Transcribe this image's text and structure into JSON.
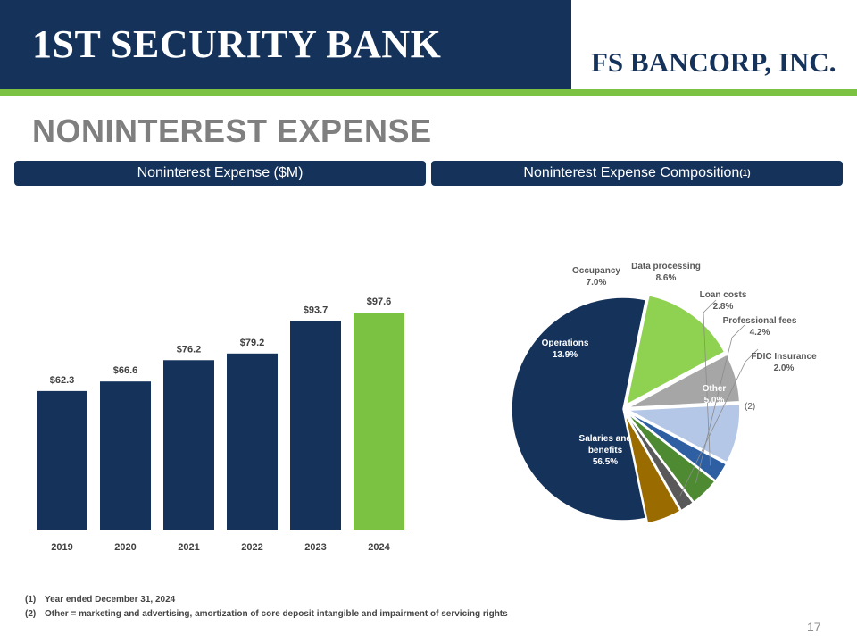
{
  "header": {
    "left_logo": "1ST SECURITY BANK",
    "right_logo": "FS BANCORP, INC."
  },
  "title": "NONINTEREST EXPENSE",
  "sections": {
    "left": "Noninterest Expense ($M)",
    "right": "Noninterest Expense Composition",
    "right_superscript": "(1)"
  },
  "colors": {
    "navy": "#15325b",
    "green": "#7cc242",
    "title_gray": "#7f7f7f"
  },
  "chart_data": [
    {
      "type": "bar",
      "title": "",
      "categories": [
        "2019",
        "2020",
        "2021",
        "2022",
        "2023",
        "2024"
      ],
      "values": [
        62.3,
        66.6,
        76.2,
        79.2,
        93.7,
        97.6
      ],
      "labels": [
        "$62.3",
        "$66.6",
        "$76.2",
        "$79.2",
        "$93.7",
        "$97.6"
      ],
      "colors": [
        "#15325b",
        "#15325b",
        "#15325b",
        "#15325b",
        "#15325b",
        "#7cc242"
      ],
      "ylim": [
        0,
        97.6
      ],
      "grid": false
    },
    {
      "type": "pie",
      "title": "",
      "slices": [
        {
          "name": "Salaries and benefits",
          "value": 56.5,
          "label": "56.5%",
          "color": "#15325b"
        },
        {
          "name": "Operations",
          "value": 13.9,
          "label": "13.9%",
          "color": "#8fd150"
        },
        {
          "name": "Occupancy",
          "value": 7.0,
          "label": "7.0%",
          "color": "#a6a6a6"
        },
        {
          "name": "Data processing",
          "value": 8.6,
          "label": "8.6%",
          "color": "#b4c7e7"
        },
        {
          "name": "Loan costs",
          "value": 2.8,
          "label": "2.8%",
          "color": "#2e5fa3"
        },
        {
          "name": "Professional fees",
          "value": 4.2,
          "label": "4.2%",
          "color": "#4e8a32"
        },
        {
          "name": "FDIC Insurance",
          "value": 2.0,
          "label": "2.0%",
          "color": "#595959"
        },
        {
          "name": "Other",
          "value": 5.0,
          "label": "5.0%",
          "color": "#9a6c00"
        }
      ],
      "other_note": "(2)"
    }
  ],
  "footnotes": [
    {
      "num": "(1)",
      "text": "Year ended December 31, 2024"
    },
    {
      "num": "(2)",
      "text": "Other = marketing and advertising, amortization of core deposit intangible and impairment of servicing rights"
    }
  ],
  "page_number": "17"
}
